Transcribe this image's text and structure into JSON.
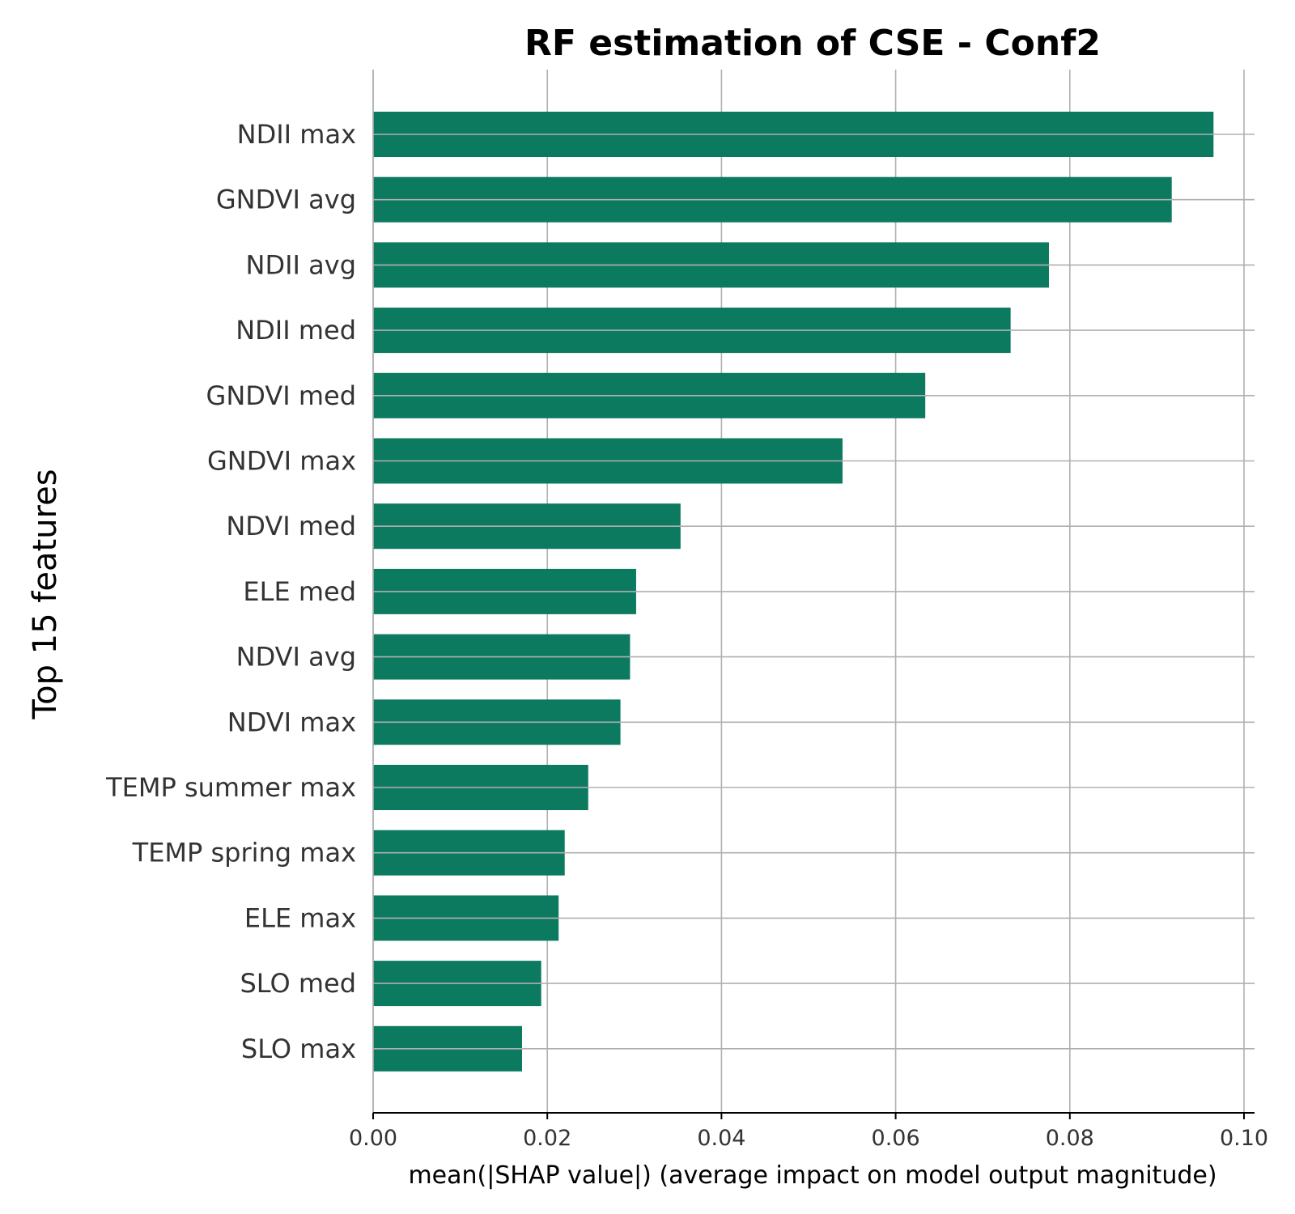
{
  "chart_data": {
    "type": "bar",
    "orientation": "horizontal",
    "title": "RF estimation of CSE - Conf2",
    "xlabel": "mean(|SHAP value|) (average impact on model output magnitude)",
    "ylabel": "Top 15 features",
    "categories": [
      "NDII max",
      "GNDVI avg",
      "NDII avg",
      "NDII med",
      "GNDVI med",
      "GNDVI max",
      "NDVI med",
      "ELE med",
      "NDVI avg",
      "NDVI max",
      "TEMP summer max",
      "TEMP spring max",
      "ELE max",
      "SLO med",
      "SLO max"
    ],
    "values": [
      0.0965,
      0.0917,
      0.0776,
      0.0732,
      0.0634,
      0.0539,
      0.0353,
      0.0302,
      0.0295,
      0.0284,
      0.0247,
      0.022,
      0.0213,
      0.0193,
      0.0171
    ],
    "xlim": [
      0,
      0.1
    ],
    "xticks": [
      "0.00",
      "0.02",
      "0.04",
      "0.06",
      "0.08",
      "0.10"
    ],
    "xtick_values": [
      0,
      0.02,
      0.04,
      0.06,
      0.08,
      0.1
    ],
    "grid": true,
    "bar_color": "#0c7a5e",
    "grid_color": "#b0b0b0",
    "axis_color": "#000000"
  }
}
